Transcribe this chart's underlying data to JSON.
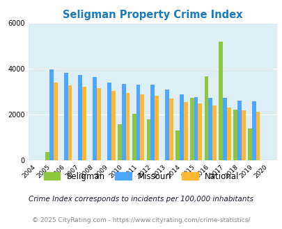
{
  "title": "Seligman Property Crime Index",
  "years": [
    2004,
    2005,
    2006,
    2007,
    2008,
    2009,
    2010,
    2011,
    2012,
    2013,
    2014,
    2015,
    2016,
    2017,
    2018,
    2019,
    2020
  ],
  "seligman": [
    null,
    350,
    null,
    null,
    null,
    null,
    1580,
    2020,
    1780,
    null,
    1290,
    2720,
    3680,
    5180,
    2200,
    1400,
    null
  ],
  "missouri": [
    null,
    3970,
    3820,
    3730,
    3650,
    3380,
    3340,
    3300,
    3290,
    3100,
    2870,
    2750,
    2720,
    2730,
    2600,
    2580,
    null
  ],
  "national": [
    null,
    3390,
    3270,
    3210,
    3140,
    3020,
    2930,
    2890,
    2830,
    2700,
    2560,
    2470,
    2380,
    2310,
    2170,
    2110,
    null
  ],
  "seligman_color": "#8dc63f",
  "missouri_color": "#4da6ff",
  "national_color": "#ffb833",
  "bg_color": "#ddeef5",
  "ylim": [
    0,
    6000
  ],
  "yticks": [
    0,
    2000,
    4000,
    6000
  ],
  "legend_labels": [
    "Seligman",
    "Missouri",
    "National"
  ],
  "footnote1": "Crime Index corresponds to incidents per 100,000 inhabitants",
  "footnote2": "© 2025 CityRating.com - https://www.cityrating.com/crime-statistics/",
  "bar_width": 0.28
}
